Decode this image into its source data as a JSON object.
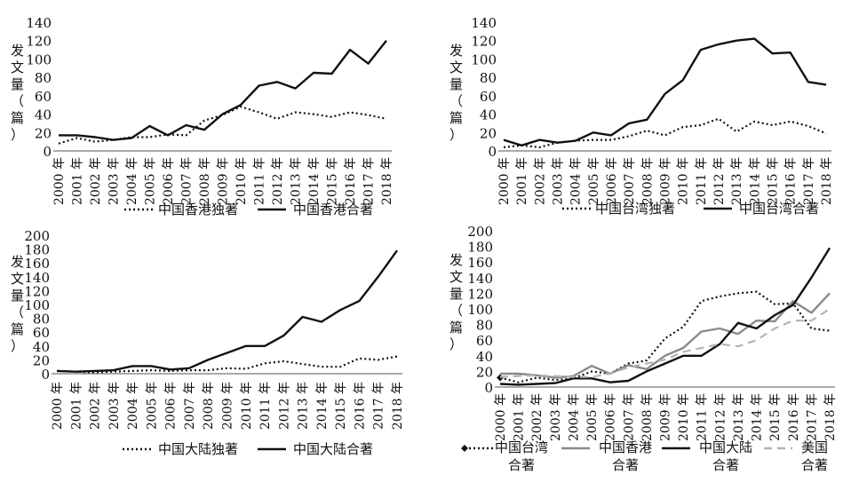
{
  "chart_data": [
    {
      "type": "line",
      "ylabel": "发文量（篇）",
      "ylim": [
        0,
        140
      ],
      "yticks": [
        0,
        20,
        40,
        60,
        80,
        100,
        120,
        140
      ],
      "categories": [
        "2000 年",
        "2001 年",
        "2002 年",
        "2003 年",
        "2004 年",
        "2005 年",
        "2006 年",
        "2007 年",
        "2008 年",
        "2009 年",
        "2010 年",
        "2011 年",
        "2012 年",
        "2013 年",
        "2014 年",
        "2015 年",
        "2016 年",
        "2017 年",
        "2018 年"
      ],
      "legend_position": "bottom",
      "series": [
        {
          "name": "中国香港独著",
          "style": "dotted",
          "color": "#111111",
          "values": [
            8,
            14,
            10,
            12,
            15,
            15,
            18,
            17,
            33,
            39,
            48,
            42,
            35,
            42,
            40,
            37,
            42,
            39,
            35
          ]
        },
        {
          "name": "中国香港合著",
          "style": "solid",
          "color": "#111111",
          "values": [
            17,
            17,
            15,
            12,
            14,
            27,
            17,
            28,
            23,
            40,
            50,
            71,
            75,
            68,
            85,
            84,
            110,
            95,
            120
          ]
        }
      ]
    },
    {
      "type": "line",
      "ylabel": "发文量（篇）",
      "ylim": [
        0,
        140
      ],
      "yticks": [
        0,
        20,
        40,
        60,
        80,
        100,
        120,
        140
      ],
      "categories": [
        "2000 年",
        "2001 年",
        "2002 年",
        "2003 年",
        "2004 年",
        "2005 年",
        "2006 年",
        "2007 年",
        "2008 年",
        "2009 年",
        "2010 年",
        "2011 年",
        "2012 年",
        "2013 年",
        "2014 年",
        "2015 年",
        "2016 年",
        "2017 年",
        "2018 年"
      ],
      "legend_position": "bottom",
      "series": [
        {
          "name": "中国台湾独著",
          "style": "dotted",
          "color": "#111111",
          "values": [
            4,
            6,
            4,
            9,
            11,
            12,
            12,
            16,
            22,
            17,
            26,
            28,
            35,
            21,
            32,
            28,
            32,
            27,
            19
          ]
        },
        {
          "name": "中国台湾合著",
          "style": "solid",
          "color": "#111111",
          "values": [
            12,
            6,
            12,
            9,
            11,
            20,
            17,
            30,
            34,
            62,
            77,
            110,
            116,
            120,
            122,
            106,
            107,
            75,
            72
          ]
        }
      ]
    },
    {
      "type": "line",
      "ylabel": "发文量（篇）",
      "ylim": [
        0,
        200
      ],
      "yticks": [
        0,
        20,
        40,
        60,
        80,
        100,
        120,
        140,
        160,
        180,
        200
      ],
      "categories": [
        "2000 年",
        "2001 年",
        "2002 年",
        "2003 年",
        "2004 年",
        "2005 年",
        "2006 年",
        "2007 年",
        "2008 年",
        "2009 年",
        "2010 年",
        "2011 年",
        "2012 年",
        "2013 年",
        "2014 年",
        "2015 年",
        "2016 年",
        "2017 年",
        "2018 年"
      ],
      "legend_position": "bottom",
      "series": [
        {
          "name": "中国大陆独著",
          "style": "dotted",
          "color": "#111111",
          "values": [
            4,
            3,
            2,
            3,
            4,
            5,
            4,
            5,
            5,
            8,
            7,
            15,
            18,
            14,
            10,
            10,
            22,
            20,
            25
          ]
        },
        {
          "name": "中国大陆合著",
          "style": "solid",
          "color": "#111111",
          "values": [
            4,
            3,
            4,
            5,
            11,
            11,
            6,
            8,
            20,
            30,
            40,
            40,
            55,
            82,
            75,
            92,
            105,
            140,
            178
          ]
        }
      ]
    },
    {
      "type": "line",
      "ylabel": "发文量（篇）",
      "ylim": [
        0,
        200
      ],
      "yticks": [
        0,
        20,
        40,
        60,
        80,
        100,
        120,
        140,
        160,
        180,
        200
      ],
      "categories": [
        "2000 年",
        "2001 年",
        "2002 年",
        "2003 年",
        "2004 年",
        "2005 年",
        "2006 年",
        "2007 年",
        "2008 年",
        "2009 年",
        "2010 年",
        "2011 年",
        "2012 年",
        "2013 年",
        "2014 年",
        "2015 年",
        "2016 年",
        "2017 年",
        "2018 年"
      ],
      "legend_position": "bottom",
      "series": [
        {
          "name": "中国台湾合著",
          "style": "dotted",
          "marker": "diamond",
          "color": "#111111",
          "values": [
            12,
            6,
            12,
            9,
            11,
            20,
            17,
            30,
            34,
            62,
            77,
            110,
            116,
            120,
            122,
            106,
            107,
            75,
            72
          ]
        },
        {
          "name": "中国香港合著",
          "style": "solid",
          "color": "#8a8a8a",
          "values": [
            17,
            17,
            15,
            12,
            14,
            27,
            17,
            28,
            23,
            40,
            50,
            71,
            75,
            68,
            85,
            84,
            110,
            95,
            120
          ]
        },
        {
          "name": "中国大陆合著",
          "style": "solid",
          "color": "#111111",
          "values": [
            4,
            3,
            4,
            5,
            11,
            11,
            6,
            8,
            20,
            30,
            40,
            40,
            55,
            82,
            75,
            92,
            105,
            140,
            178
          ]
        },
        {
          "name": "美国合著",
          "style": "dashed",
          "color": "#b4b4b4",
          "values": [
            13,
            14,
            15,
            14,
            13,
            13,
            17,
            25,
            30,
            35,
            45,
            50,
            55,
            52,
            60,
            75,
            85,
            85,
            100
          ]
        }
      ]
    }
  ]
}
